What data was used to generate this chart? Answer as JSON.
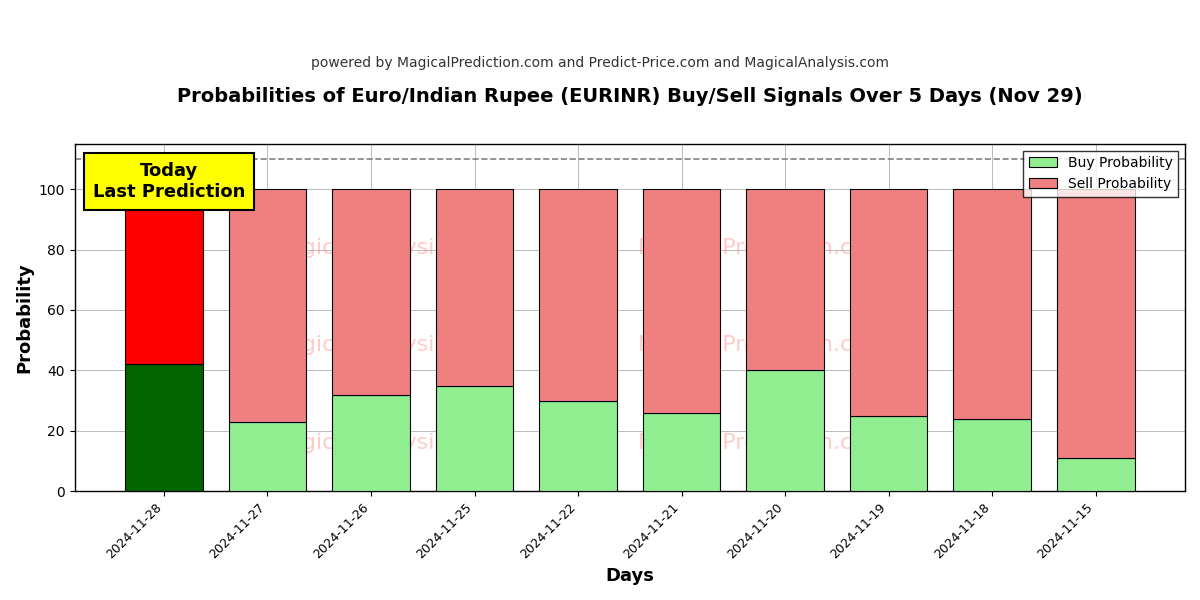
{
  "title": "Probabilities of Euro/Indian Rupee (EURINR) Buy/Sell Signals Over 5 Days (Nov 29)",
  "subtitle": "powered by MagicalPrediction.com and Predict-Price.com and MagicalAnalysis.com",
  "xlabel": "Days",
  "ylabel": "Probability",
  "dates": [
    "2024-11-28",
    "2024-11-27",
    "2024-11-26",
    "2024-11-25",
    "2024-11-22",
    "2024-11-21",
    "2024-11-20",
    "2024-11-19",
    "2024-11-18",
    "2024-11-15"
  ],
  "buy_values": [
    42,
    23,
    32,
    35,
    30,
    26,
    40,
    25,
    24,
    11
  ],
  "sell_values": [
    58,
    77,
    68,
    65,
    70,
    74,
    60,
    75,
    76,
    89
  ],
  "buy_colors": [
    "#006400",
    "#90EE90",
    "#90EE90",
    "#90EE90",
    "#90EE90",
    "#90EE90",
    "#90EE90",
    "#90EE90",
    "#90EE90",
    "#90EE90"
  ],
  "sell_colors": [
    "#FF0000",
    "#F08080",
    "#F08080",
    "#F08080",
    "#F08080",
    "#F08080",
    "#F08080",
    "#F08080",
    "#F08080",
    "#F08080"
  ],
  "today_label": "Today\nLast Prediction",
  "today_bg": "#FFFF00",
  "legend_buy_color": "#90EE90",
  "legend_sell_color": "#F08080",
  "ylim": [
    0,
    115
  ],
  "dashed_line_y": 110,
  "bar_edge_color": "#000000",
  "background_color": "#ffffff",
  "grid_color": "#bbbbbb",
  "title_fontsize": 14,
  "subtitle_fontsize": 10,
  "bar_width": 0.75
}
